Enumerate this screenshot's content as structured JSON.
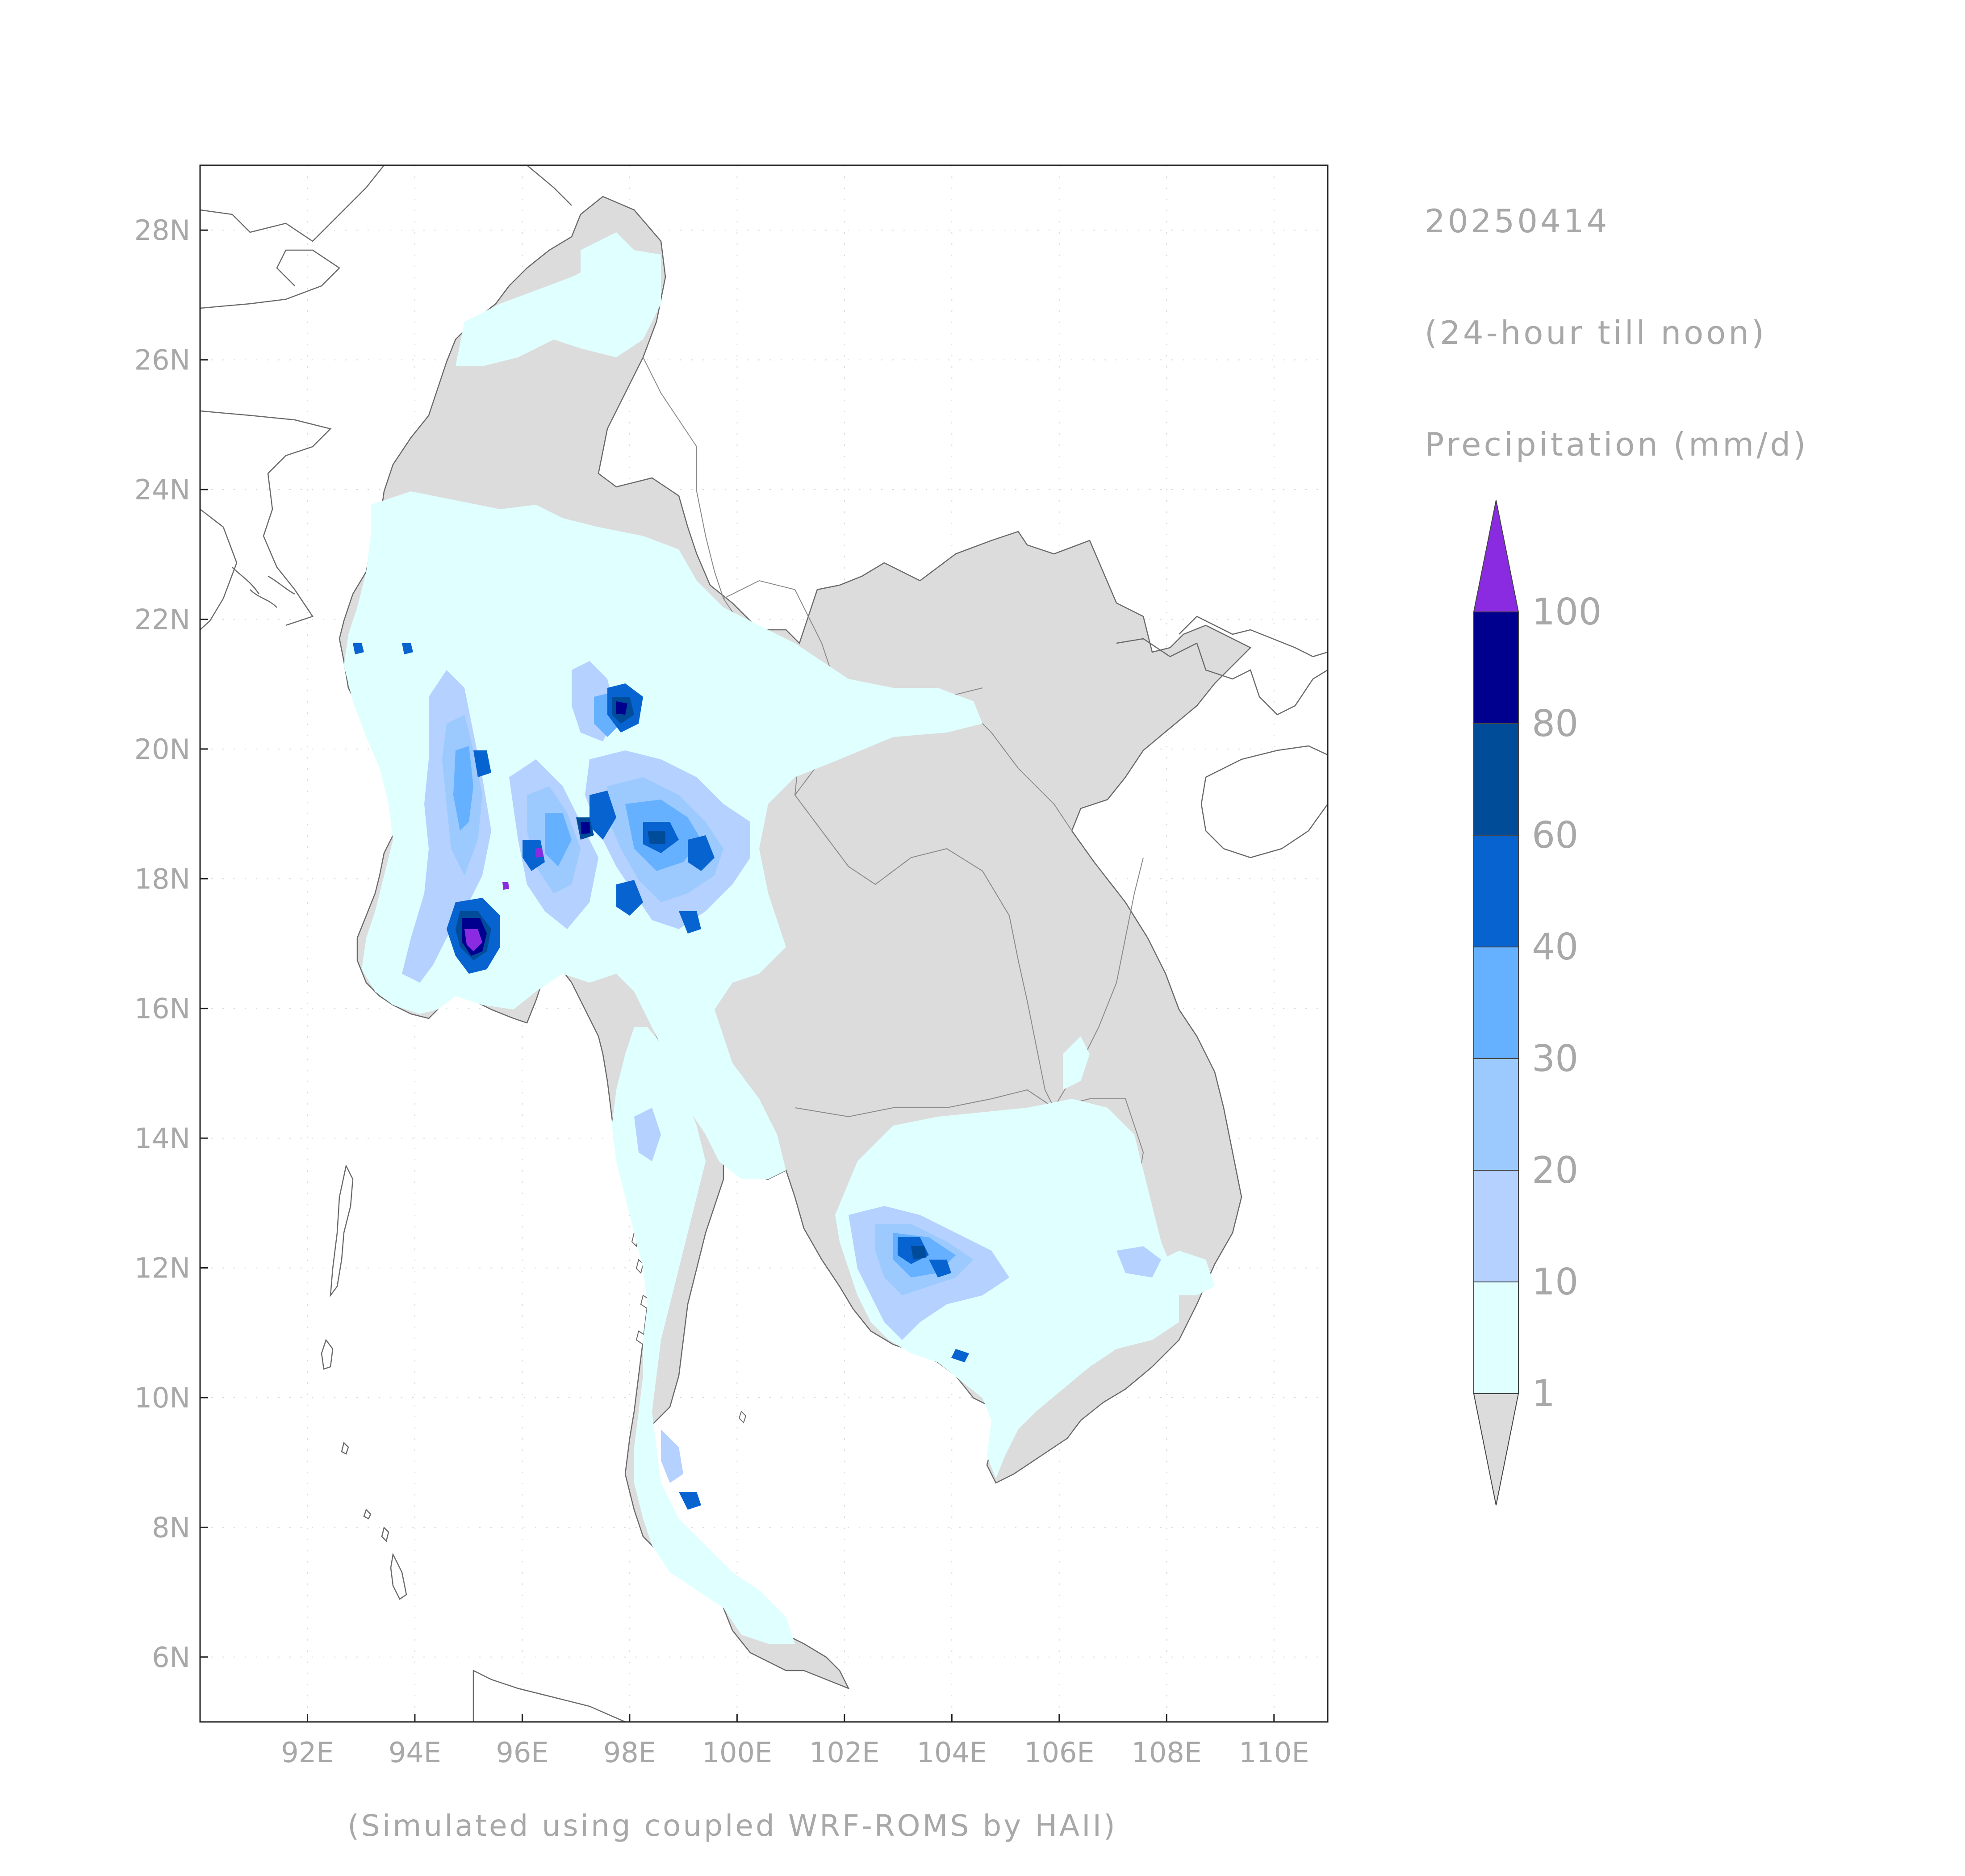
{
  "header": {
    "date": "20250414",
    "period": "(24-hour till noon)",
    "variable": "Precipitation (mm/d)"
  },
  "footer": {
    "credit": "(Simulated using coupled WRF-ROMS by HAII)"
  },
  "map": {
    "lon_range": [
      90,
      111
    ],
    "lat_range": [
      5,
      29
    ],
    "lon_ticks": [
      {
        "value": 92,
        "label": "92E"
      },
      {
        "value": 94,
        "label": "94E"
      },
      {
        "value": 96,
        "label": "96E"
      },
      {
        "value": 98,
        "label": "98E"
      },
      {
        "value": 100,
        "label": "100E"
      },
      {
        "value": 102,
        "label": "102E"
      },
      {
        "value": 104,
        "label": "104E"
      },
      {
        "value": 106,
        "label": "106E"
      },
      {
        "value": 108,
        "label": "108E"
      },
      {
        "value": 110,
        "label": "110E"
      }
    ],
    "lat_ticks": [
      {
        "value": 6,
        "label": "6N"
      },
      {
        "value": 8,
        "label": "8N"
      },
      {
        "value": 10,
        "label": "10N"
      },
      {
        "value": 12,
        "label": "12N"
      },
      {
        "value": 14,
        "label": "14N"
      },
      {
        "value": 16,
        "label": "16N"
      },
      {
        "value": 18,
        "label": "18N"
      },
      {
        "value": 20,
        "label": "20N"
      },
      {
        "value": 22,
        "label": "22N"
      },
      {
        "value": 24,
        "label": "24N"
      },
      {
        "value": 26,
        "label": "26N"
      },
      {
        "value": 28,
        "label": "28N"
      }
    ],
    "grid": true,
    "colors": {
      "dry": "#dcdcdc",
      "c1": "#e0ffff",
      "c10": "#b4d1ff",
      "c20": "#9ccaff",
      "c30": "#66b1ff",
      "c40": "#0663d0",
      "c60": "#004c99",
      "c80": "#00008f",
      "c100": "#8a2be2"
    }
  },
  "legend": {
    "levels": [
      {
        "label": "100",
        "color": "#8a2be2"
      },
      {
        "label": "80",
        "color": "#00008f"
      },
      {
        "label": "60",
        "color": "#004c99"
      },
      {
        "label": "40",
        "color": "#0663d0"
      },
      {
        "label": "30",
        "color": "#66b1ff"
      },
      {
        "label": "20",
        "color": "#9ccaff"
      },
      {
        "label": "10",
        "color": "#b4d1ff"
      },
      {
        "label": "1",
        "color": "#e0ffff"
      }
    ],
    "below_color": "#dcdcdc"
  }
}
